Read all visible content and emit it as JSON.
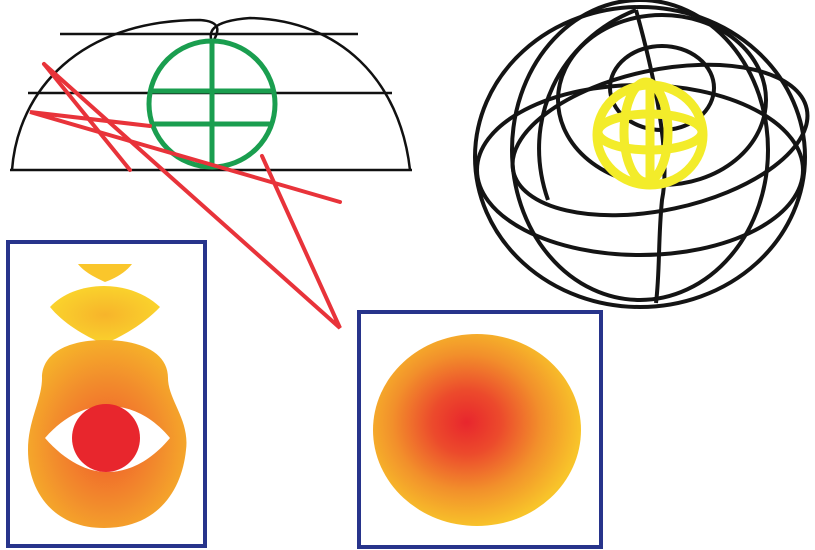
{
  "figure": {
    "panels": [
      {
        "name": "hemisphere-outline"
      },
      {
        "name": "wireframe-sphere"
      },
      {
        "name": "vertical-section"
      },
      {
        "name": "horizontal-section"
      }
    ]
  },
  "colors": {
    "outline": "#111111",
    "cross_marker": "#1a9e4f",
    "leader_line": "#e8333a",
    "sphere_marker": "#f3ec2a",
    "frame": "#27348b",
    "gradient_center": "#e8262d",
    "gradient_mid": "#f07a2a",
    "gradient_edge": "#f8c22a"
  },
  "icons": {
    "cross": "circle-cross-marker",
    "sphere": "small-wireframe-sphere-marker"
  }
}
